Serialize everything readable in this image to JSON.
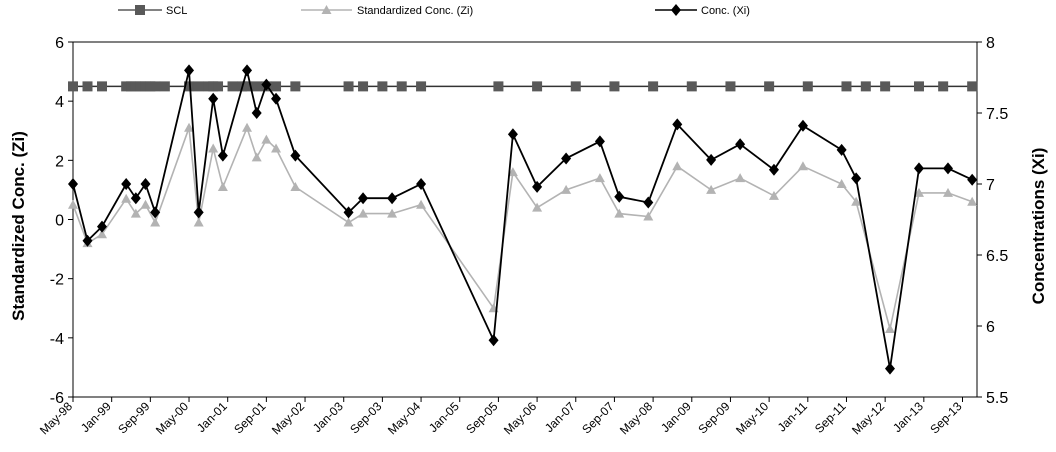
{
  "chart_data": {
    "type": "line",
    "xlabel": "",
    "ylabel": "Standardized Conc. (Zi)",
    "y2label": "Concentrations (Xi)",
    "ylim": [
      -6,
      6
    ],
    "y2lim": [
      5.5,
      8
    ],
    "yticks": [
      "-6",
      "-4",
      "-2",
      "0",
      "2",
      "4",
      "6"
    ],
    "y2ticks": [
      "5.5",
      "6",
      "6.5",
      "7",
      "7.5",
      "8"
    ],
    "xlim": [
      "1998-05",
      "2013-12"
    ],
    "x_tick_labels": [
      "May-98",
      "Jan-99",
      "Sep-99",
      "May-00",
      "Jan-01",
      "Sep-01",
      "May-02",
      "Jan-03",
      "Sep-03",
      "May-04",
      "Jan-05",
      "Sep-05",
      "May-06",
      "Jan-07",
      "Sep-07",
      "May-08",
      "Jan-09",
      "Sep-09",
      "May-10",
      "Jan-11",
      "Sep-11",
      "May-12",
      "Jan-13",
      "Sep-13"
    ],
    "x_tick_dates": [
      "1998-05",
      "1999-01",
      "1999-09",
      "2000-05",
      "2001-01",
      "2001-09",
      "2002-05",
      "2003-01",
      "2003-09",
      "2004-05",
      "2005-01",
      "2005-09",
      "2006-05",
      "2007-01",
      "2007-09",
      "2008-05",
      "2009-01",
      "2009-09",
      "2010-05",
      "2011-01",
      "2011-09",
      "2012-05",
      "2013-01",
      "2013-09"
    ],
    "grid": false,
    "legend_position": "top",
    "series": [
      {
        "name": "SCL",
        "axis": "left",
        "color": "#595959",
        "marker": "square",
        "x": [
          "1998-05",
          "1998-08",
          "1998-11",
          "1999-04",
          "1999-05",
          "1999-06",
          "1999-07",
          "1999-08",
          "1999-09",
          "1999-10",
          "1999-12",
          "2000-05",
          "2000-07",
          "2000-09",
          "2000-10",
          "2000-11",
          "2001-02",
          "2001-04",
          "2001-05",
          "2001-07",
          "2001-09",
          "2001-11",
          "2002-03",
          "2003-02",
          "2003-05",
          "2003-09",
          "2004-01",
          "2004-05",
          "2005-09",
          "2006-05",
          "2007-01",
          "2007-09",
          "2008-05",
          "2009-01",
          "2009-09",
          "2010-05",
          "2011-01",
          "2011-09",
          "2012-01",
          "2012-05",
          "2012-12",
          "2013-05",
          "2013-11"
        ],
        "y": [
          4.5,
          4.5,
          4.5,
          4.5,
          4.5,
          4.5,
          4.5,
          4.5,
          4.5,
          4.5,
          4.5,
          4.5,
          4.5,
          4.5,
          4.5,
          4.5,
          4.5,
          4.5,
          4.5,
          4.5,
          4.5,
          4.5,
          4.5,
          4.5,
          4.5,
          4.5,
          4.5,
          4.5,
          4.5,
          4.5,
          4.5,
          4.5,
          4.5,
          4.5,
          4.5,
          4.5,
          4.5,
          4.5,
          4.5,
          4.5,
          4.5,
          4.5,
          4.5
        ]
      },
      {
        "name": "Standardized Conc. (Zi)",
        "axis": "left",
        "color": "#b3b3b3",
        "marker": "triangle",
        "x": [
          "1998-05",
          "1998-08",
          "1998-11",
          "1999-04",
          "1999-06",
          "1999-08",
          "1999-10",
          "2000-05",
          "2000-07",
          "2000-10",
          "2000-12",
          "2001-05",
          "2001-07",
          "2001-09",
          "2001-11",
          "2002-03",
          "2003-02",
          "2003-05",
          "2003-11",
          "2004-05",
          "2005-08",
          "2005-12",
          "2006-05",
          "2006-11",
          "2007-06",
          "2007-10",
          "2008-04",
          "2008-10",
          "2009-05",
          "2009-11",
          "2010-06",
          "2010-12",
          "2011-08",
          "2011-11",
          "2012-06",
          "2012-12",
          "2013-06",
          "2013-11"
        ],
        "y": [
          0.5,
          -0.8,
          -0.5,
          0.7,
          0.2,
          0.5,
          -0.1,
          3.1,
          -0.1,
          2.4,
          1.1,
          3.1,
          2.1,
          2.7,
          2.4,
          1.1,
          -0.1,
          0.2,
          0.2,
          0.5,
          -3.0,
          1.6,
          0.4,
          1.0,
          1.4,
          0.2,
          0.1,
          1.8,
          1.0,
          1.4,
          0.8,
          1.8,
          1.2,
          0.6,
          -3.7,
          0.9,
          0.9,
          0.6
        ]
      },
      {
        "name": "Conc. (Xi)",
        "axis": "right",
        "color": "#000000",
        "marker": "diamond",
        "x": [
          "1998-05",
          "1998-08",
          "1998-11",
          "1999-04",
          "1999-06",
          "1999-08",
          "1999-10",
          "2000-05",
          "2000-07",
          "2000-10",
          "2000-12",
          "2001-05",
          "2001-07",
          "2001-09",
          "2001-11",
          "2002-03",
          "2003-02",
          "2003-05",
          "2003-11",
          "2004-05",
          "2005-08",
          "2005-12",
          "2006-05",
          "2006-11",
          "2007-06",
          "2007-10",
          "2008-04",
          "2008-10",
          "2009-05",
          "2009-11",
          "2010-06",
          "2010-12",
          "2011-08",
          "2011-11",
          "2012-06",
          "2012-12",
          "2013-06",
          "2013-11"
        ],
        "y": [
          7.0,
          6.6,
          6.7,
          7.0,
          6.9,
          7.0,
          6.8,
          7.8,
          6.8,
          7.6,
          7.2,
          7.8,
          7.5,
          7.7,
          7.6,
          7.2,
          6.8,
          6.9,
          6.9,
          7.0,
          5.9,
          7.35,
          6.98,
          7.18,
          7.3,
          6.91,
          6.87,
          7.42,
          7.17,
          7.28,
          7.1,
          7.41,
          7.24,
          7.04,
          5.7,
          7.11,
          7.11,
          7.03
        ]
      }
    ]
  }
}
